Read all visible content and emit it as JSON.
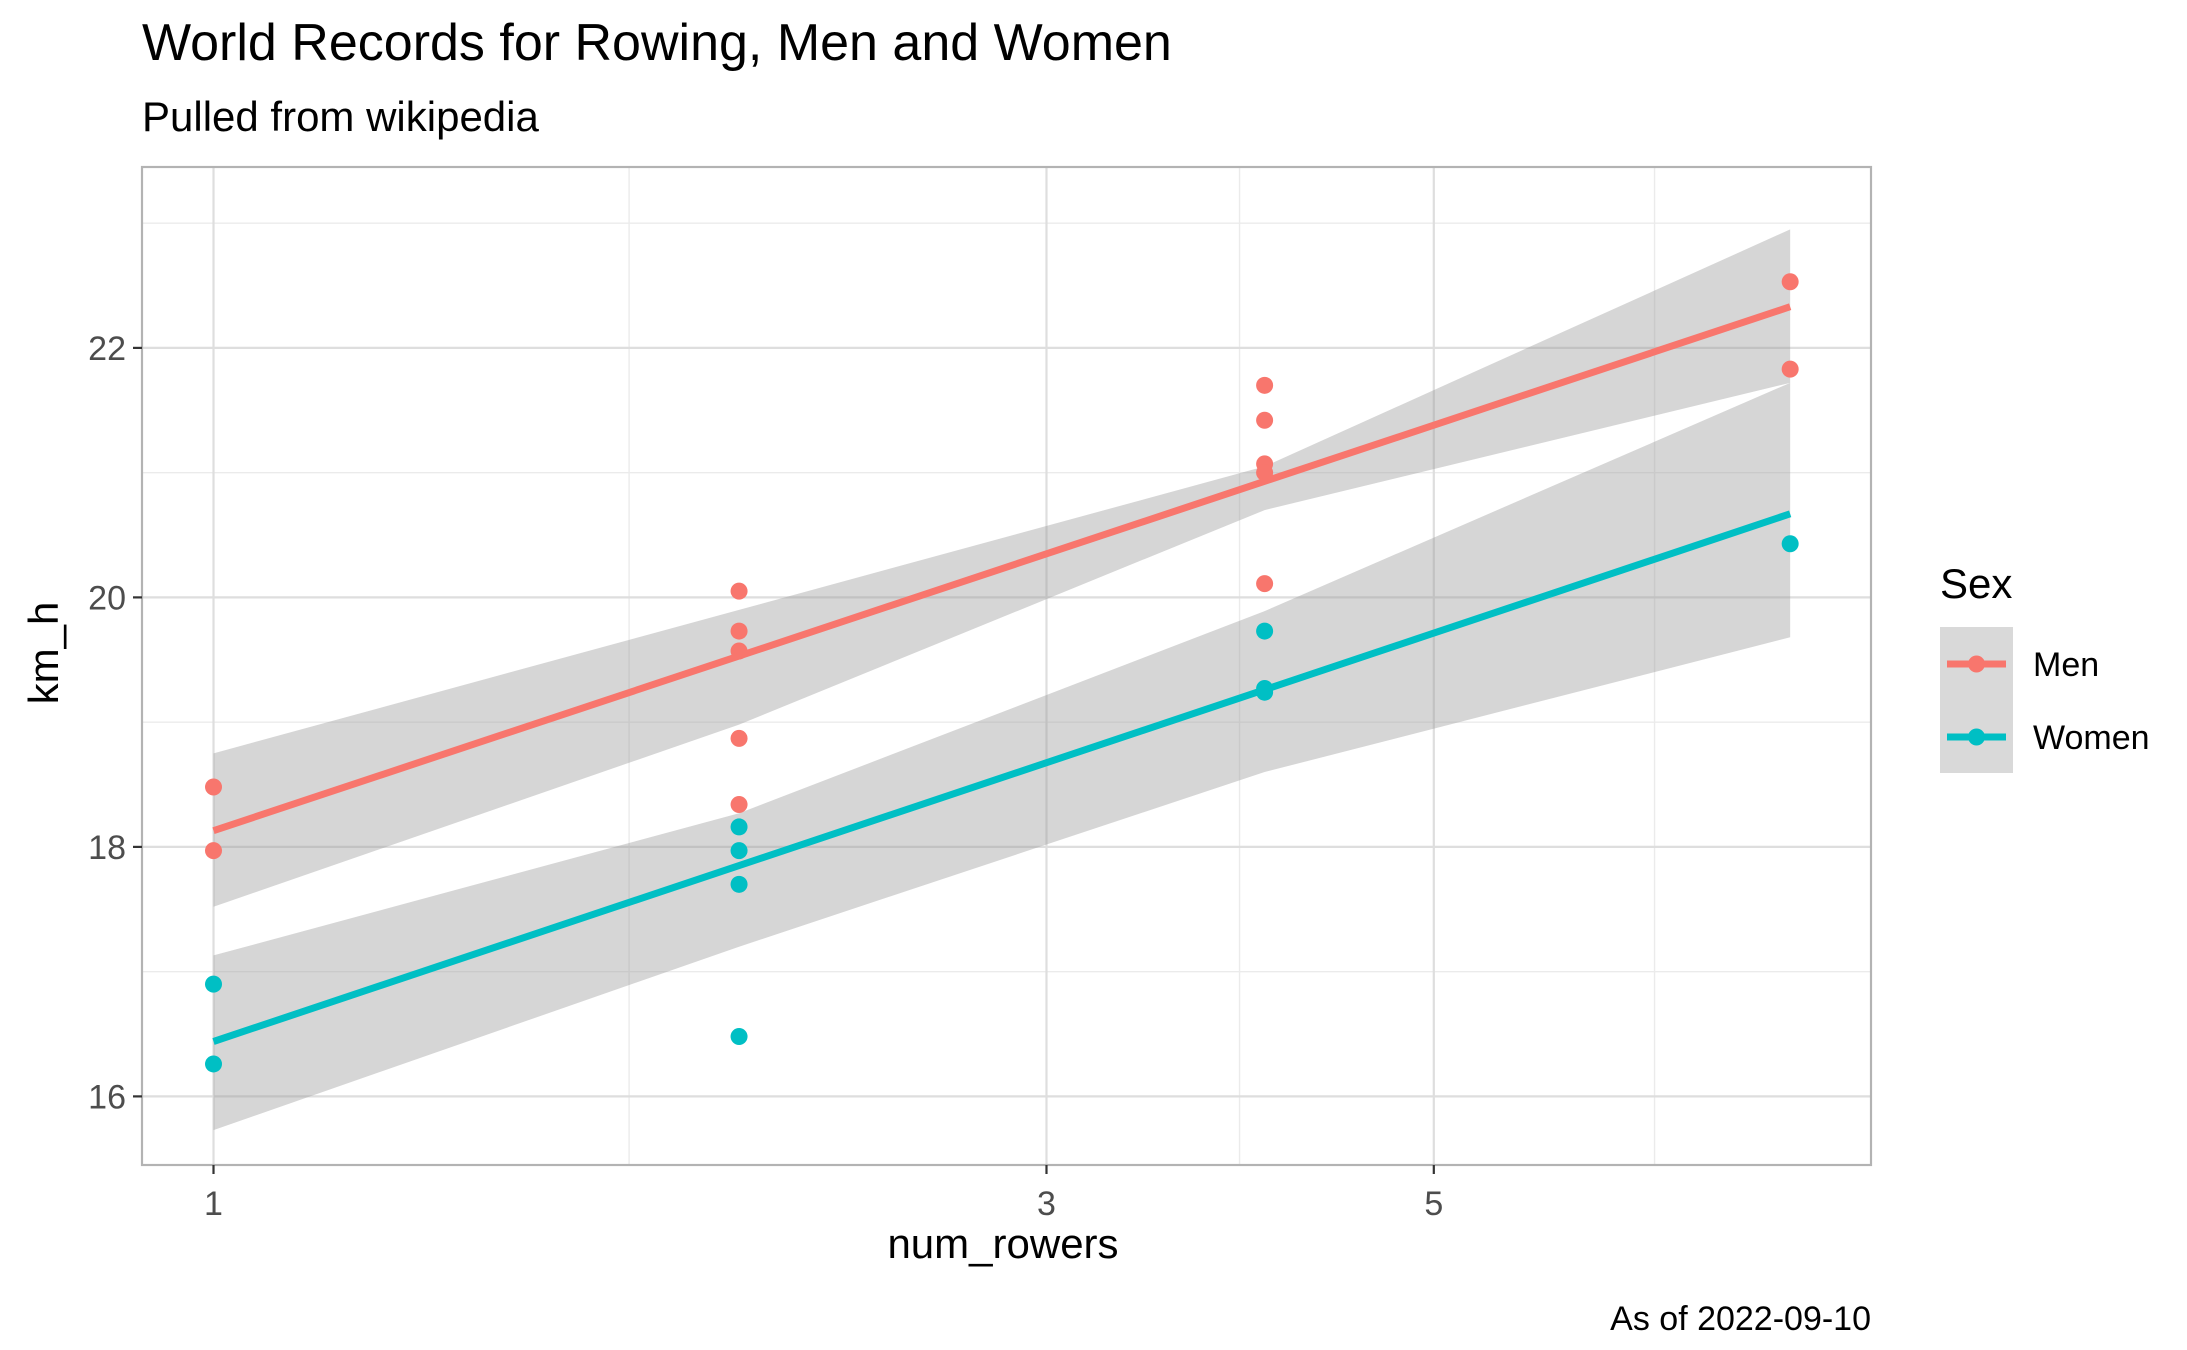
{
  "chart_data": {
    "type": "scatter",
    "title": "World Records for Rowing, Men and Women",
    "subtitle": "Pulled from wikipedia",
    "caption": "As of 2022-09-10",
    "xlabel": "num_rowers",
    "ylabel": "km_h",
    "x_scale": "log10",
    "xlim": [
      0.91,
      8.9
    ],
    "ylim": [
      15.45,
      23.45
    ],
    "x_ticks": [
      1,
      3,
      5
    ],
    "x_minor_ticks": [
      1.73,
      3.87,
      6.69
    ],
    "y_ticks": [
      16,
      18,
      20,
      22
    ],
    "y_minor_ticks": [
      17,
      19,
      21,
      23
    ],
    "grid": true,
    "legend": {
      "title": "Sex",
      "position": "right",
      "entries": [
        {
          "label": "Men",
          "color": "#F8766D"
        },
        {
          "label": "Women",
          "color": "#00BFC4"
        }
      ]
    },
    "series": [
      {
        "name": "Men",
        "color": "#F8766D",
        "points": [
          {
            "x": 1,
            "y": 18.48
          },
          {
            "x": 1,
            "y": 17.97
          },
          {
            "x": 2,
            "y": 20.05
          },
          {
            "x": 2,
            "y": 19.73
          },
          {
            "x": 2,
            "y": 19.57
          },
          {
            "x": 2,
            "y": 18.87
          },
          {
            "x": 2,
            "y": 18.34
          },
          {
            "x": 4,
            "y": 21.7
          },
          {
            "x": 4,
            "y": 21.42
          },
          {
            "x": 4,
            "y": 21.07
          },
          {
            "x": 4,
            "y": 21.0
          },
          {
            "x": 4,
            "y": 20.11
          },
          {
            "x": 8,
            "y": 22.53
          },
          {
            "x": 8,
            "y": 21.83
          }
        ],
        "fit": {
          "x": [
            1,
            8
          ],
          "y": [
            18.13,
            22.33
          ]
        },
        "band": {
          "x": [
            1,
            2,
            4,
            8
          ],
          "upper": [
            18.75,
            19.9,
            21.05,
            22.95
          ],
          "lower": [
            17.52,
            18.98,
            20.7,
            21.72
          ]
        }
      },
      {
        "name": "Women",
        "color": "#00BFC4",
        "points": [
          {
            "x": 1,
            "y": 16.9
          },
          {
            "x": 1,
            "y": 16.26
          },
          {
            "x": 2,
            "y": 18.16
          },
          {
            "x": 2,
            "y": 17.97
          },
          {
            "x": 2,
            "y": 17.7
          },
          {
            "x": 2,
            "y": 16.48
          },
          {
            "x": 4,
            "y": 19.73
          },
          {
            "x": 4,
            "y": 19.27
          },
          {
            "x": 4,
            "y": 19.24
          },
          {
            "x": 8,
            "y": 20.43
          }
        ],
        "fit": {
          "x": [
            1,
            8
          ],
          "y": [
            16.44,
            20.67
          ]
        },
        "band": {
          "x": [
            1,
            2,
            4,
            8
          ],
          "upper": [
            17.13,
            18.27,
            19.89,
            21.72
          ],
          "lower": [
            15.73,
            17.2,
            18.6,
            19.68
          ]
        }
      }
    ]
  }
}
